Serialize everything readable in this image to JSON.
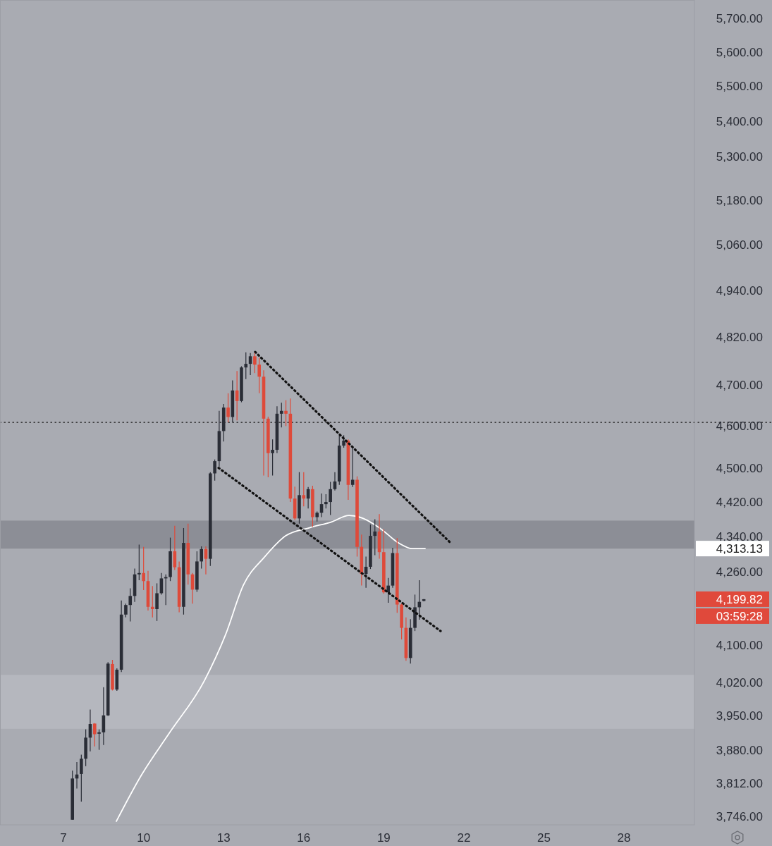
{
  "chart_data": {
    "type": "candlestick",
    "x": [
      7.333,
      7.5,
      7.667,
      7.833,
      8,
      8.167,
      8.333,
      8.5,
      8.667,
      8.833,
      9,
      9.167,
      9.333,
      9.5,
      9.667,
      9.833,
      10,
      10.167,
      10.333,
      10.5,
      10.667,
      10.833,
      11,
      11.167,
      11.333,
      11.5,
      11.667,
      11.833,
      12,
      12.167,
      12.333,
      12.5,
      12.667,
      12.833,
      13,
      13.167,
      13.333,
      13.5,
      13.667,
      13.833,
      14,
      14.167,
      14.333,
      14.5,
      14.667,
      14.833,
      15,
      15.167,
      15.333,
      15.5,
      15.667,
      15.833,
      16,
      16.167,
      16.333,
      16.5,
      16.667,
      16.833,
      17,
      17.167,
      17.333,
      17.5,
      17.667,
      17.833,
      18,
      18.167,
      18.333,
      18.5,
      18.667,
      18.833,
      19,
      19.167,
      19.333,
      19.5,
      19.667,
      19.833,
      20,
      20.167,
      20.333,
      20.5
    ],
    "ohlc": [
      [
        3740,
        3838,
        3740,
        3822
      ],
      [
        3822,
        3855,
        3802,
        3830
      ],
      [
        3831,
        3870,
        3776,
        3862
      ],
      [
        3862,
        3922,
        3847,
        3905
      ],
      [
        3905,
        3963,
        3877,
        3933
      ],
      [
        3934,
        3935,
        3887,
        3912
      ],
      [
        3913,
        3922,
        3880,
        3916
      ],
      [
        3916,
        4010,
        3890,
        3951
      ],
      [
        3951,
        4063,
        3950,
        4060
      ],
      [
        4059,
        4068,
        4003,
        4005
      ],
      [
        4005,
        4050,
        4002,
        4047
      ],
      [
        4047,
        4197,
        4042,
        4166
      ],
      [
        4166,
        4190,
        4160,
        4187
      ],
      [
        4187,
        4224,
        4151,
        4207
      ],
      [
        4207,
        4268,
        4194,
        4255
      ],
      [
        4255,
        4322,
        4242,
        4258
      ],
      [
        4258,
        4317,
        4220,
        4240
      ],
      [
        4240,
        4263,
        4175,
        4183
      ],
      [
        4183,
        4229,
        4160,
        4178
      ],
      [
        4178,
        4235,
        4152,
        4213
      ],
      [
        4213,
        4258,
        4210,
        4246
      ],
      [
        4246,
        4255,
        4187,
        4249
      ],
      [
        4249,
        4338,
        4240,
        4307
      ],
      [
        4307,
        4365,
        4265,
        4271
      ],
      [
        4271,
        4284,
        4171,
        4183
      ],
      [
        4183,
        4360,
        4166,
        4326
      ],
      [
        4326,
        4370,
        4232,
        4255
      ],
      [
        4255,
        4258,
        4190,
        4221
      ],
      [
        4221,
        4307,
        4216,
        4284
      ],
      [
        4284,
        4318,
        4268,
        4312
      ],
      [
        4312,
        4318,
        4255,
        4290
      ],
      [
        4290,
        4490,
        4274,
        4487
      ],
      [
        4487,
        4520,
        4470,
        4516
      ],
      [
        4516,
        4637,
        4503,
        4588
      ],
      [
        4588,
        4654,
        4563,
        4645
      ],
      [
        4645,
        4680,
        4609,
        4622
      ],
      [
        4622,
        4712,
        4609,
        4687
      ],
      [
        4687,
        4735,
        4614,
        4661
      ],
      [
        4661,
        4747,
        4658,
        4744
      ],
      [
        4744,
        4782,
        4715,
        4753
      ],
      [
        4753,
        4780,
        4725,
        4772
      ],
      [
        4772,
        4782,
        4730,
        4751
      ],
      [
        4751,
        4768,
        4680,
        4721
      ],
      [
        4721,
        4737,
        4482,
        4618
      ],
      [
        4618,
        4623,
        4478,
        4535
      ],
      [
        4535,
        4568,
        4482,
        4543
      ],
      [
        4543,
        4648,
        4535,
        4630
      ],
      [
        4630,
        4657,
        4597,
        4637
      ],
      [
        4637,
        4663,
        4600,
        4630
      ],
      [
        4630,
        4667,
        4420,
        4428
      ],
      [
        4428,
        4456,
        4378,
        4382
      ],
      [
        4382,
        4490,
        4370,
        4436
      ],
      [
        4436,
        4490,
        4410,
        4428
      ],
      [
        4428,
        4455,
        4405,
        4450
      ],
      [
        4450,
        4458,
        4363,
        4385
      ],
      [
        4385,
        4398,
        4375,
        4395
      ],
      [
        4395,
        4440,
        4385,
        4415
      ],
      [
        4415,
        4438,
        4405,
        4420
      ],
      [
        4420,
        4467,
        4390,
        4450
      ],
      [
        4450,
        4490,
        4447,
        4468
      ],
      [
        4468,
        4578,
        4460,
        4553
      ],
      [
        4553,
        4578,
        4548,
        4565
      ],
      [
        4565,
        4568,
        4425,
        4460
      ],
      [
        4460,
        4548,
        4455,
        4472
      ],
      [
        4472,
        4480,
        4295,
        4317
      ],
      [
        4317,
        4345,
        4230,
        4256
      ],
      [
        4256,
        4295,
        4225,
        4272
      ],
      [
        4272,
        4368,
        4267,
        4342
      ],
      [
        4342,
        4380,
        4298,
        4352
      ],
      [
        4352,
        4392,
        4290,
        4305
      ],
      [
        4305,
        4357,
        4212,
        4215
      ],
      [
        4215,
        4247,
        4192,
        4230
      ],
      [
        4230,
        4315,
        4225,
        4303
      ],
      [
        4303,
        4337,
        4170,
        4188
      ],
      [
        4188,
        4190,
        4112,
        4137
      ],
      [
        4137,
        4160,
        4066,
        4072
      ],
      [
        4072,
        4156,
        4060,
        4137
      ],
      [
        4137,
        4210,
        4130,
        4182
      ],
      [
        4182,
        4242,
        4155,
        4194
      ],
      [
        4196,
        4200,
        4195,
        4199.82
      ]
    ],
    "colors": [
      "#2a2d36",
      "#2a2d36",
      "#2a2d36",
      "#2a2d36",
      "#2a2d36",
      "#de4a3a",
      "#2a2d36",
      "#2a2d36",
      "#2a2d36",
      "#de4a3a",
      "#2a2d36",
      "#2a2d36",
      "#2a2d36",
      "#2a2d36",
      "#2a2d36",
      "#2a2d36",
      "#de4a3a",
      "#de4a3a",
      "#de4a3a",
      "#2a2d36",
      "#2a2d36",
      "#2a2d36",
      "#2a2d36",
      "#de4a3a",
      "#de4a3a",
      "#2a2d36",
      "#de4a3a",
      "#de4a3a",
      "#2a2d36",
      "#2a2d36",
      "#de4a3a",
      "#2a2d36",
      "#2a2d36",
      "#2a2d36",
      "#2a2d36",
      "#de4a3a",
      "#2a2d36",
      "#de4a3a",
      "#2a2d36",
      "#2a2d36",
      "#2a2d36",
      "#de4a3a",
      "#de4a3a",
      "#de4a3a",
      "#de4a3a",
      "#2a2d36",
      "#2a2d36",
      "#2a2d36",
      "#de4a3a",
      "#de4a3a",
      "#de4a3a",
      "#2a2d36",
      "#de4a3a",
      "#2a2d36",
      "#de4a3a",
      "#2a2d36",
      "#2a2d36",
      "#2a2d36",
      "#2a2d36",
      "#2a2d36",
      "#2a2d36",
      "#2a2d36",
      "#de4a3a",
      "#2a2d36",
      "#de4a3a",
      "#de4a3a",
      "#2a2d36",
      "#2a2d36",
      "#2a2d36",
      "#de4a3a",
      "#de4a3a",
      "#2a2d36",
      "#2a2d36",
      "#de4a3a",
      "#de4a3a",
      "#de4a3a",
      "#2a2d36",
      "#2a2d36",
      "#2a2d36",
      "#2a2d36"
    ],
    "series": [
      {
        "type": "line",
        "color": "#ffffff",
        "line_style": "solid",
        "x": [
          8.98,
          9.91,
          10.96,
          12.28,
          13.07,
          13.74,
          14.53,
          15.32,
          16.24,
          17.04,
          17.7,
          18.23,
          18.89,
          19.55,
          20.07,
          20.55
        ],
        "values": [
          3737,
          3828,
          3914,
          4024,
          4122,
          4231,
          4294,
          4342,
          4361,
          4374,
          4389,
          4382,
          4358,
          4326,
          4313,
          4313.13
        ]
      },
      {
        "type": "line",
        "color": "#111111",
        "line_style": "dotted",
        "x": [
          14.18,
          21.47
        ],
        "values": [
          4783,
          4328
        ]
      },
      {
        "type": "line",
        "color": "#111111",
        "line_style": "dotted",
        "x": [
          12.81,
          21.13
        ],
        "values": [
          4500,
          4130
        ]
      }
    ],
    "xlim": [
      4.62,
      30.64
    ],
    "ylim": [
      3730,
      5755
    ],
    "log": "y",
    "xticks": [
      7,
      10,
      13,
      16,
      19,
      22,
      25,
      28
    ],
    "yticks": [
      {
        "value": 5700,
        "label": "5,700.00"
      },
      {
        "value": 5600,
        "label": "5,600.00"
      },
      {
        "value": 5500,
        "label": "5,500.00"
      },
      {
        "value": 5400,
        "label": "5,400.00"
      },
      {
        "value": 5300,
        "label": "5,300.00"
      },
      {
        "value": 5180,
        "label": "5,180.00"
      },
      {
        "value": 5060,
        "label": "5,060.00"
      },
      {
        "value": 4940,
        "label": "4,940.00"
      },
      {
        "value": 4820,
        "label": "4,820.00"
      },
      {
        "value": 4700,
        "label": "4,700.00"
      },
      {
        "value": 4600,
        "label": "4,600.00"
      },
      {
        "value": 4500,
        "label": "4,500.00"
      },
      {
        "value": 4420,
        "label": "4,420.00"
      },
      {
        "value": 4340,
        "label": "4,340.00"
      },
      {
        "value": 4260,
        "label": "4,260.00"
      },
      {
        "value": 4100,
        "label": "4,100.00"
      },
      {
        "value": 4020,
        "label": "4,020.00"
      },
      {
        "value": 3950,
        "label": "3,950.00"
      },
      {
        "value": 3880,
        "label": "3,880.00"
      },
      {
        "value": 3812,
        "label": "3,812.00"
      },
      {
        "value": 3746,
        "label": "3,746.00"
      }
    ],
    "grid": false,
    "ref_lines": [
      {
        "axis": "y",
        "value": 4609,
        "color": "#1a1a1a",
        "line_style": "dotted"
      }
    ],
    "bands": [
      {
        "axis": "y",
        "from": 4313,
        "to": 4377,
        "color": "#8c8e96"
      },
      {
        "axis": "y",
        "from": 3923,
        "to": 4036,
        "color": "#b5b7be"
      }
    ],
    "annotations": [
      "4,313.13",
      "4,199.82",
      "03:59:28"
    ]
  }
}
